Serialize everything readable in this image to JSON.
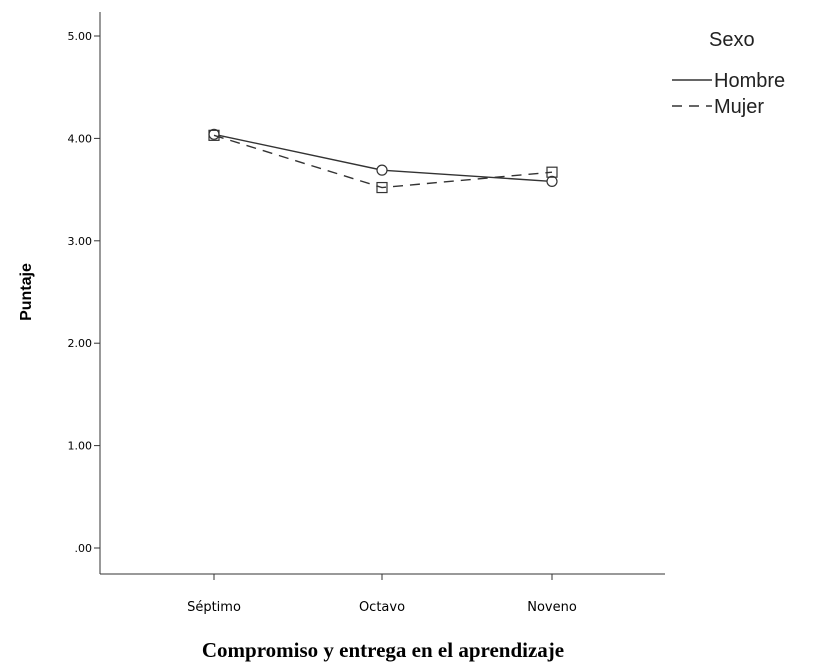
{
  "chart_data": {
    "type": "line",
    "categories": [
      "Séptimo",
      "Octavo",
      "Noveno"
    ],
    "ylabel": "Puntaje",
    "xlabel": "Compromiso y entrega en el aprendizaje",
    "ylim": [
      0,
      5
    ],
    "yticks": [
      ".00",
      "1.00",
      "2.00",
      "3.00",
      "4.00",
      "5.00"
    ],
    "grid": false,
    "legend": {
      "title": "Sexo",
      "placement": "top-right"
    },
    "series": [
      {
        "name": "Hombre",
        "values": [
          4.04,
          3.69,
          3.58
        ],
        "line_style": "solid",
        "marker": "circle",
        "color": "#333333"
      },
      {
        "name": "Mujer",
        "values": [
          4.03,
          3.52,
          3.67
        ],
        "line_style": "dashed",
        "marker": "square",
        "color": "#333333"
      }
    ]
  }
}
